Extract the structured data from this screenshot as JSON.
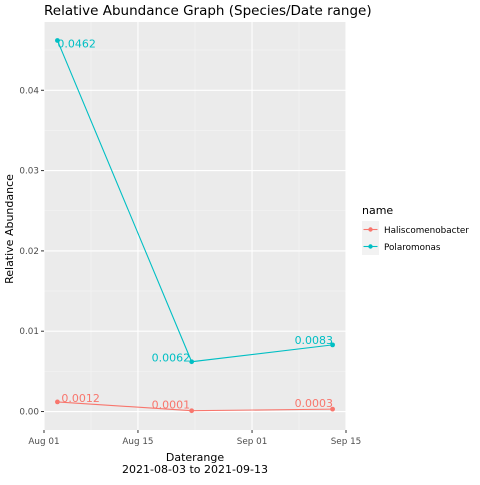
{
  "chart_data": {
    "type": "line",
    "title": "Relative Abundance Graph (Species/Date range)",
    "xlabel": "Daterange",
    "xlabel_sub": "2021-08-03 to 2021-09-13",
    "ylabel": "Relative Abundance",
    "x_type": "date",
    "xlim": [
      "2021-08-01",
      "2021-09-15"
    ],
    "ylim": [
      -0.0023,
      0.0485
    ],
    "x_ticks": [
      {
        "date": "2021-08-01",
        "label": "Aug 01"
      },
      {
        "date": "2021-08-15",
        "label": "Aug 15"
      },
      {
        "date": "2021-09-01",
        "label": "Sep 01"
      },
      {
        "date": "2021-09-15",
        "label": "Sep 15"
      }
    ],
    "y_ticks": [
      {
        "value": 0.0,
        "label": "0.00"
      },
      {
        "value": 0.01,
        "label": "0.01"
      },
      {
        "value": 0.02,
        "label": "0.02"
      },
      {
        "value": 0.03,
        "label": "0.03"
      },
      {
        "value": 0.04,
        "label": "0.04"
      }
    ],
    "grid": true,
    "legend": {
      "title": "name",
      "position": "right"
    },
    "series": [
      {
        "name": "Haliscomenobacter",
        "color": "#F8766D",
        "points": [
          {
            "x": "2021-08-03",
            "y": 0.0012,
            "label": "0.0012"
          },
          {
            "x": "2021-08-23",
            "y": 0.0001,
            "label": "0.0001"
          },
          {
            "x": "2021-09-13",
            "y": 0.0003,
            "label": "0.0003"
          }
        ]
      },
      {
        "name": "Polaromonas",
        "color": "#00BFC4",
        "points": [
          {
            "x": "2021-08-03",
            "y": 0.0462,
            "label": "0.0462"
          },
          {
            "x": "2021-08-23",
            "y": 0.0062,
            "label": "0.0062"
          },
          {
            "x": "2021-09-13",
            "y": 0.0083,
            "label": "0.0083"
          }
        ]
      }
    ]
  }
}
